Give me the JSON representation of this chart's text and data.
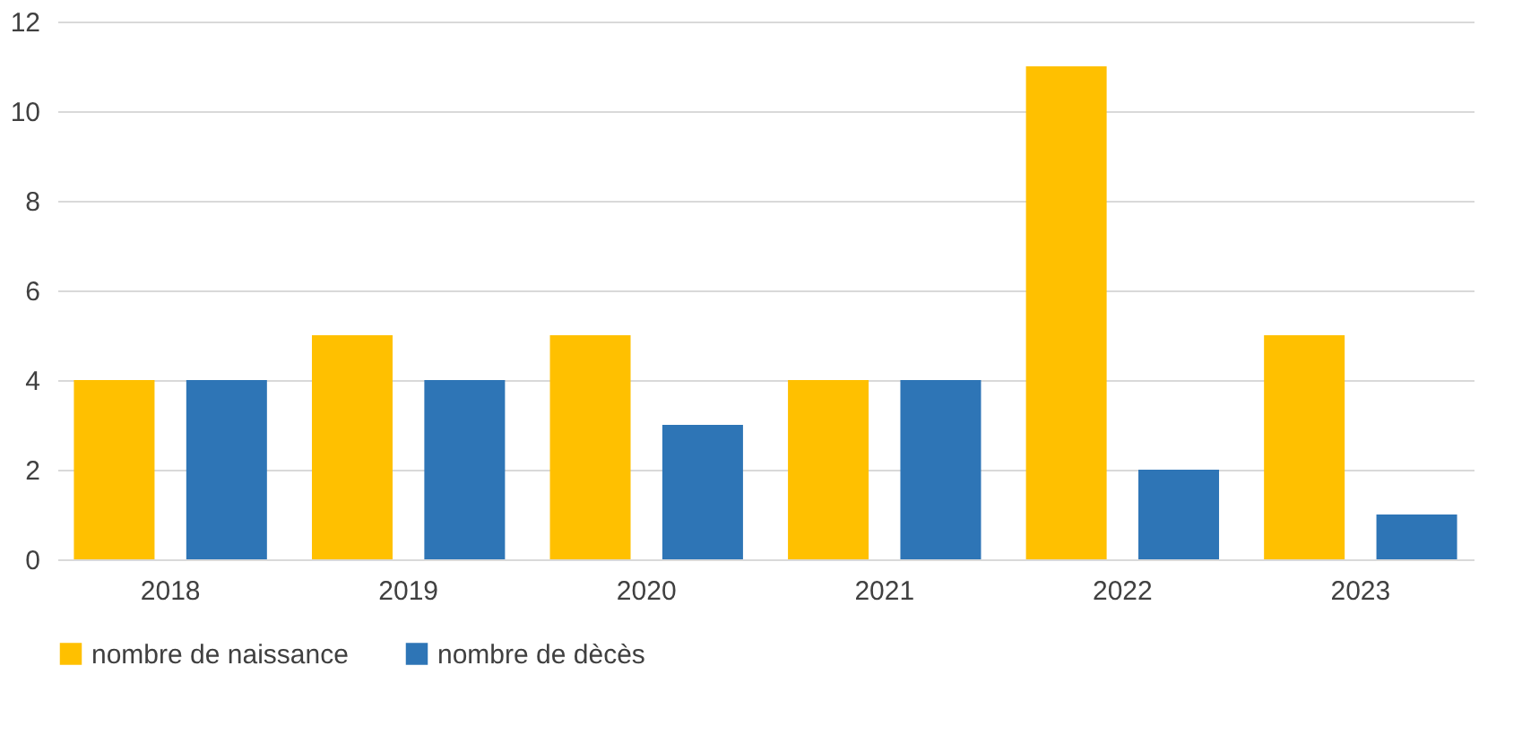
{
  "chart_data": {
    "type": "bar",
    "categories": [
      "2018",
      "2019",
      "2020",
      "2021",
      "2022",
      "2023"
    ],
    "series": [
      {
        "name": "nombre de naissance",
        "color": "#ffc000",
        "values": [
          4,
          5,
          5,
          4,
          11,
          5
        ]
      },
      {
        "name": "nombre de dècès",
        "color": "#2e75b6",
        "values": [
          4,
          4,
          3,
          4,
          2,
          1
        ]
      }
    ],
    "ylim": [
      0,
      12
    ],
    "yticks": [
      0,
      2,
      4,
      6,
      8,
      10,
      12
    ],
    "grid": "y",
    "legend": "bottom"
  }
}
